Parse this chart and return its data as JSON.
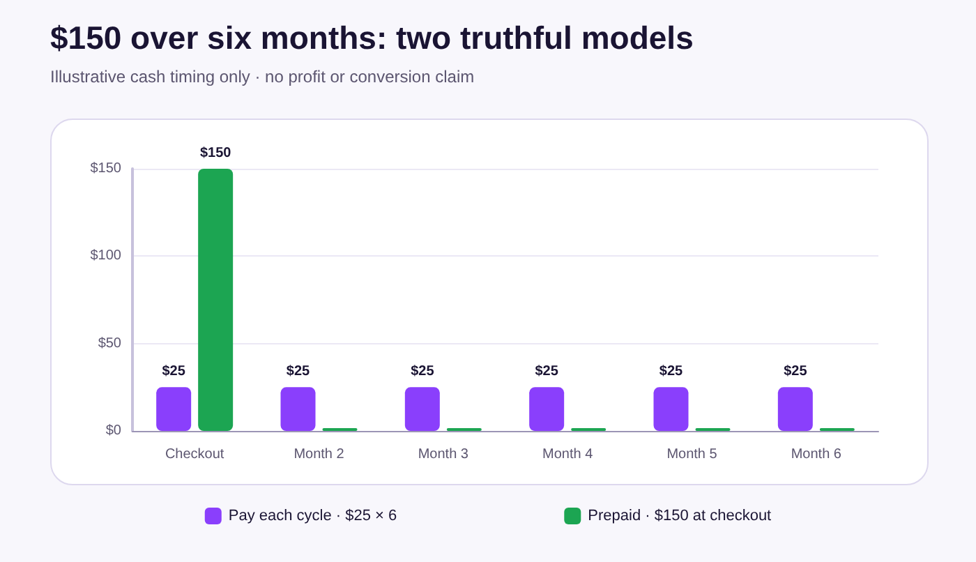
{
  "chart_data": {
    "type": "bar",
    "title": "$150 over six months: two truthful models",
    "subtitle": "Illustrative cash timing only · no profit or conversion claim",
    "categories": [
      "Checkout",
      "Month 2",
      "Month 3",
      "Month 4",
      "Month 5",
      "Month 6"
    ],
    "series": [
      {
        "name": "Pay each cycle · $25 × 6",
        "color": "#8a3ffc",
        "values": [
          25,
          25,
          25,
          25,
          25,
          25
        ],
        "value_labels": [
          "$25",
          "$25",
          "$25",
          "$25",
          "$25",
          "$25"
        ]
      },
      {
        "name": "Prepaid · $150 at checkout",
        "color": "#1ca552",
        "values": [
          150,
          0,
          0,
          0,
          0,
          0
        ],
        "value_labels": [
          "$150",
          null,
          null,
          null,
          null,
          null
        ]
      }
    ],
    "ylim": [
      0,
      150
    ],
    "yticks": [
      {
        "value": 0,
        "label": "$0"
      },
      {
        "value": 50,
        "label": "$50"
      },
      {
        "value": 100,
        "label": "$100"
      },
      {
        "value": 150,
        "label": "$150"
      }
    ],
    "grid": "y",
    "legend": "bottom"
  }
}
